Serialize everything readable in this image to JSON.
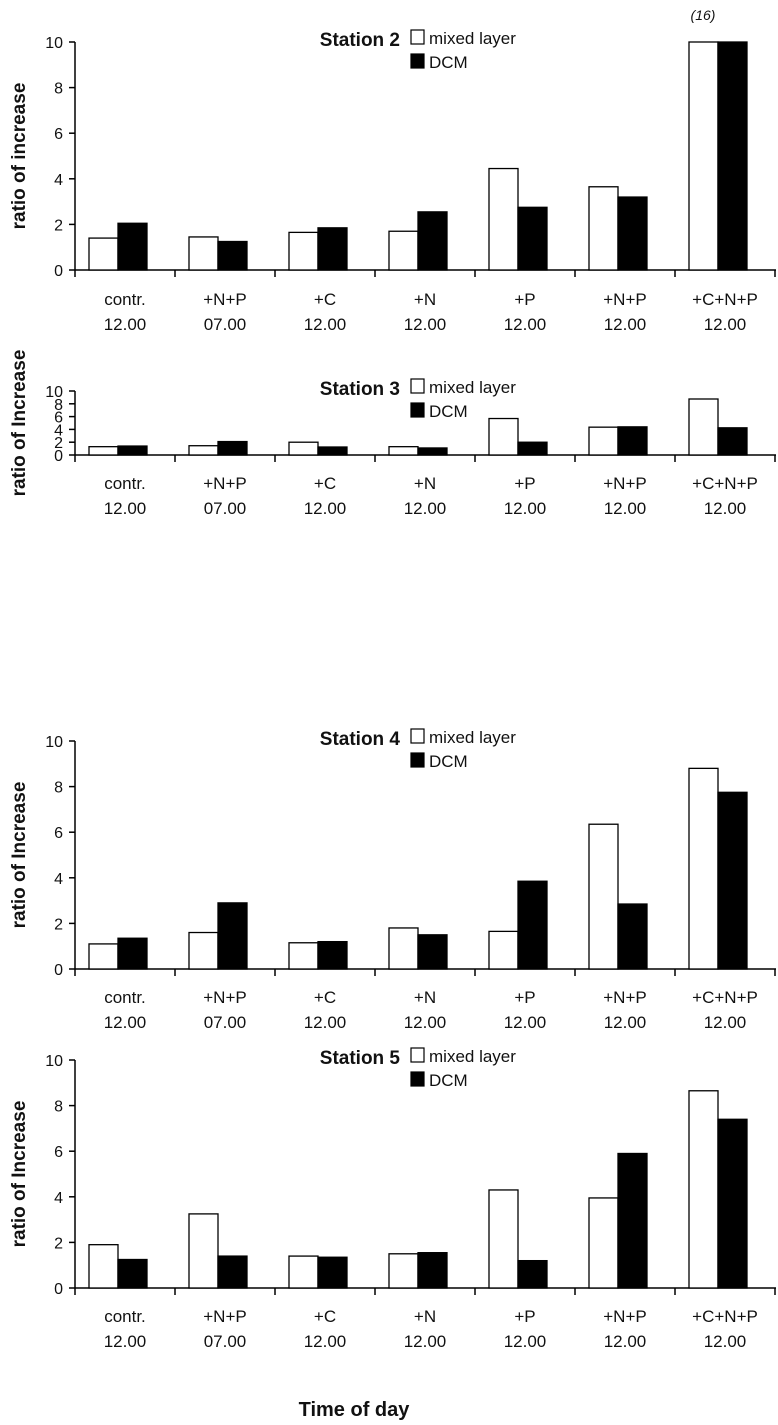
{
  "colors": {
    "mixed_layer": "#ffffff",
    "dcm": "#000000",
    "axis": "#000000"
  },
  "x_axis_title": "Time of day",
  "chart_data": [
    {
      "type": "bar",
      "title": "Station 2",
      "ylabel": "ratio of increase",
      "ylim": [
        0,
        10
      ],
      "yticks": [
        0,
        2,
        4,
        6,
        8,
        10
      ],
      "legend": [
        "mixed layer",
        "DCM"
      ],
      "legend_position": "top-center",
      "categories": [
        {
          "treatment": "contr.",
          "time": "12.00"
        },
        {
          "treatment": "+N+P",
          "time": "07.00"
        },
        {
          "treatment": "+C",
          "time": "12.00"
        },
        {
          "treatment": "+N",
          "time": "12.00"
        },
        {
          "treatment": "+P",
          "time": "12.00"
        },
        {
          "treatment": "+N+P",
          "time": "12.00"
        },
        {
          "treatment": "+C+N+P",
          "time": "12.00"
        }
      ],
      "series": [
        {
          "name": "mixed layer",
          "values": [
            1.4,
            1.45,
            1.65,
            1.7,
            4.45,
            3.65,
            10
          ]
        },
        {
          "name": "DCM",
          "values": [
            2.05,
            1.25,
            1.85,
            2.55,
            2.75,
            3.2,
            10
          ]
        }
      ],
      "annotations": [
        {
          "category_index": 6,
          "text": "(16)"
        }
      ]
    },
    {
      "type": "bar",
      "title": "Station 3",
      "ylabel": "ratio of Increase",
      "ylim": [
        0,
        10
      ],
      "yticks": [
        0,
        2,
        4,
        6,
        8,
        10
      ],
      "legend": [
        "mixed layer",
        "DCM"
      ],
      "legend_position": "top-center",
      "categories": [
        {
          "treatment": "contr.",
          "time": "12.00"
        },
        {
          "treatment": "+N+P",
          "time": "07.00"
        },
        {
          "treatment": "+C",
          "time": "12.00"
        },
        {
          "treatment": "+N",
          "time": "12.00"
        },
        {
          "treatment": "+P",
          "time": "12.00"
        },
        {
          "treatment": "+N+P",
          "time": "12.00"
        },
        {
          "treatment": "+C+N+P",
          "time": "12.00"
        }
      ],
      "series": [
        {
          "name": "mixed layer",
          "values": [
            1.3,
            1.45,
            2.0,
            1.3,
            5.7,
            4.35,
            8.75
          ]
        },
        {
          "name": "DCM",
          "values": [
            1.4,
            2.1,
            1.25,
            1.1,
            2.0,
            4.4,
            4.25
          ]
        }
      ]
    },
    {
      "type": "bar",
      "title": "Station 4",
      "ylabel": "ratio of Increase",
      "ylim": [
        0,
        10
      ],
      "yticks": [
        0,
        2,
        4,
        6,
        8,
        10
      ],
      "legend": [
        "mixed layer",
        "DCM"
      ],
      "legend_position": "top-center",
      "categories": [
        {
          "treatment": "contr.",
          "time": "12.00"
        },
        {
          "treatment": "+N+P",
          "time": "07.00"
        },
        {
          "treatment": "+C",
          "time": "12.00"
        },
        {
          "treatment": "+N",
          "time": "12.00"
        },
        {
          "treatment": "+P",
          "time": "12.00"
        },
        {
          "treatment": "+N+P",
          "time": "12.00"
        },
        {
          "treatment": "+C+N+P",
          "time": "12.00"
        }
      ],
      "series": [
        {
          "name": "mixed layer",
          "values": [
            1.1,
            1.6,
            1.15,
            1.8,
            1.65,
            6.35,
            8.8
          ]
        },
        {
          "name": "DCM",
          "values": [
            1.35,
            2.9,
            1.2,
            1.5,
            3.85,
            2.85,
            7.75
          ]
        }
      ]
    },
    {
      "type": "bar",
      "title": "Station 5",
      "ylabel": "ratio of Increase",
      "ylim": [
        0,
        10
      ],
      "yticks": [
        0,
        2,
        4,
        6,
        8,
        10
      ],
      "legend": [
        "mixed layer",
        "DCM"
      ],
      "legend_position": "top-center",
      "categories": [
        {
          "treatment": "contr.",
          "time": "12.00"
        },
        {
          "treatment": "+N+P",
          "time": "07.00"
        },
        {
          "treatment": "+C",
          "time": "12.00"
        },
        {
          "treatment": "+N",
          "time": "12.00"
        },
        {
          "treatment": "+P",
          "time": "12.00"
        },
        {
          "treatment": "+N+P",
          "time": "12.00"
        },
        {
          "treatment": "+C+N+P",
          "time": "12.00"
        }
      ],
      "series": [
        {
          "name": "mixed layer",
          "values": [
            1.9,
            3.25,
            1.4,
            1.5,
            4.3,
            3.95,
            8.65
          ]
        },
        {
          "name": "DCM",
          "values": [
            1.25,
            1.4,
            1.35,
            1.55,
            1.2,
            5.9,
            7.4
          ]
        }
      ]
    }
  ]
}
